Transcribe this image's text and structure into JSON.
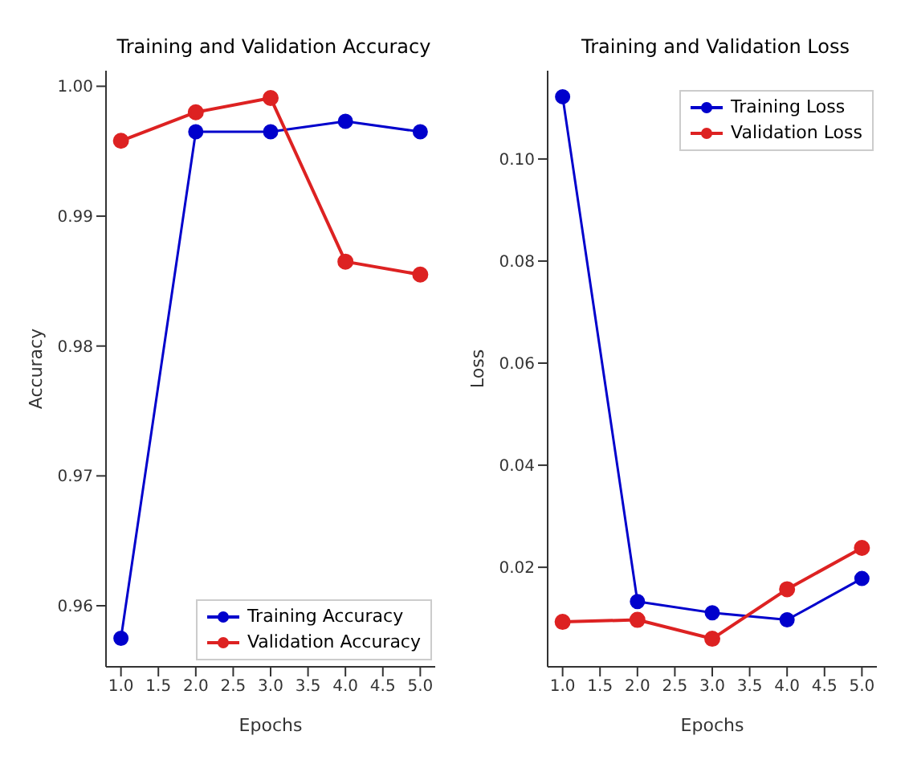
{
  "chart_data": [
    {
      "type": "line",
      "title": "Training and Validation Accuracy",
      "xlabel": "Epochs",
      "ylabel": "Accuracy",
      "x": [
        1,
        2,
        3,
        4,
        5
      ],
      "xlim": [
        0.8,
        5.2
      ],
      "xticks": [
        {
          "value": 1,
          "label": "1.0"
        },
        {
          "value": 1.5,
          "label": "1.5"
        },
        {
          "value": 2,
          "label": "2.0"
        },
        {
          "value": 2.5,
          "label": "2.5"
        },
        {
          "value": 3,
          "label": "3.0"
        },
        {
          "value": 3.5,
          "label": "3.5"
        },
        {
          "value": 4,
          "label": "4.0"
        },
        {
          "value": 4.5,
          "label": "4.5"
        },
        {
          "value": 5,
          "label": "5.0"
        }
      ],
      "ylim": [
        0.9553,
        1.0012
      ],
      "yticks": [
        {
          "value": 0.96,
          "label": "0.96"
        },
        {
          "value": 0.97,
          "label": "0.97"
        },
        {
          "value": 0.98,
          "label": "0.98"
        },
        {
          "value": 0.99,
          "label": "0.99"
        },
        {
          "value": 1,
          "label": "1.00"
        }
      ],
      "grid": false,
      "legend": "bottom right",
      "marker": "circle",
      "line_style": "solid",
      "series": [
        {
          "name": "Training Accuracy",
          "color": "#0000cc",
          "values": [
            0.9575,
            0.9965,
            0.9965,
            0.9973,
            0.9965
          ]
        },
        {
          "name": "Validation Accuracy",
          "color": "#dd2222",
          "values": [
            0.9958,
            0.998,
            0.9991,
            0.9865,
            0.9855
          ]
        }
      ]
    },
    {
      "type": "line",
      "title": "Training and Validation Loss",
      "xlabel": "Epochs",
      "ylabel": "Loss",
      "x": [
        1,
        2,
        3,
        4,
        5
      ],
      "xlim": [
        0.8,
        5.2
      ],
      "xticks": [
        {
          "value": 1,
          "label": "1.0"
        },
        {
          "value": 1.5,
          "label": "1.5"
        },
        {
          "value": 2,
          "label": "2.0"
        },
        {
          "value": 2.5,
          "label": "2.5"
        },
        {
          "value": 3,
          "label": "3.0"
        },
        {
          "value": 3.5,
          "label": "3.5"
        },
        {
          "value": 4,
          "label": "4.0"
        },
        {
          "value": 4.5,
          "label": "4.5"
        },
        {
          "value": 5,
          "label": "5.0"
        }
      ],
      "ylim": [
        0.0005,
        0.1173
      ],
      "yticks": [
        {
          "value": 0.02,
          "label": "0.02"
        },
        {
          "value": 0.04,
          "label": "0.04"
        },
        {
          "value": 0.06,
          "label": "0.06"
        },
        {
          "value": 0.08,
          "label": "0.08"
        },
        {
          "value": 0.1,
          "label": "0.10"
        }
      ],
      "grid": false,
      "legend": "top right",
      "marker": "circle",
      "line_style": "solid",
      "series": [
        {
          "name": "Training Loss",
          "color": "#0000cc",
          "values": [
            0.1122,
            0.0133,
            0.0111,
            0.0097,
            0.0178
          ]
        },
        {
          "name": "Validation Loss",
          "color": "#dd2222",
          "values": [
            0.0093,
            0.0097,
            0.006,
            0.0157,
            0.0238
          ]
        }
      ]
    }
  ]
}
